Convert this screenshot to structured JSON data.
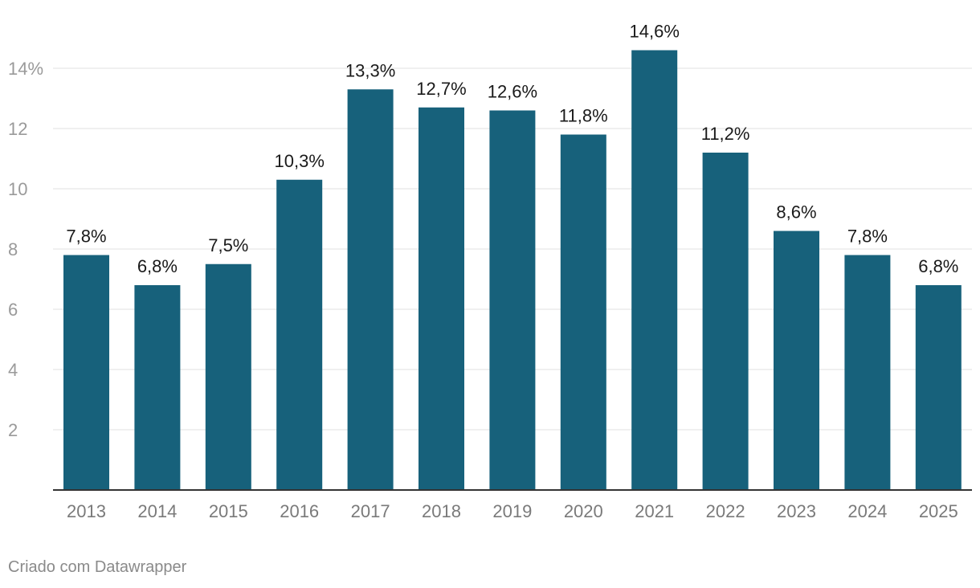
{
  "chart_data": {
    "type": "bar",
    "categories": [
      "2013",
      "2014",
      "2015",
      "2016",
      "2017",
      "2018",
      "2019",
      "2020",
      "2021",
      "2022",
      "2023",
      "2024",
      "2025"
    ],
    "values": [
      7.8,
      6.8,
      7.5,
      10.3,
      13.3,
      12.7,
      12.6,
      11.8,
      14.6,
      11.2,
      8.6,
      7.8,
      6.8
    ],
    "data_labels": [
      "7,8%",
      "6,8%",
      "7,5%",
      "10,3%",
      "13,3%",
      "12,7%",
      "12,6%",
      "11,8%",
      "14,6%",
      "11,2%",
      "8,6%",
      "7,8%",
      "6,8%"
    ],
    "y_ticks": [
      2,
      4,
      6,
      8,
      10,
      12,
      14
    ],
    "y_tick_labels": [
      "2",
      "4",
      "6",
      "8",
      "10",
      "12",
      "14%"
    ],
    "ylim": [
      0,
      14.6
    ],
    "grid": true,
    "bar_color": "#17617b",
    "title": "",
    "xlabel": "",
    "ylabel": ""
  },
  "footer": {
    "credit": "Criado com Datawrapper"
  }
}
